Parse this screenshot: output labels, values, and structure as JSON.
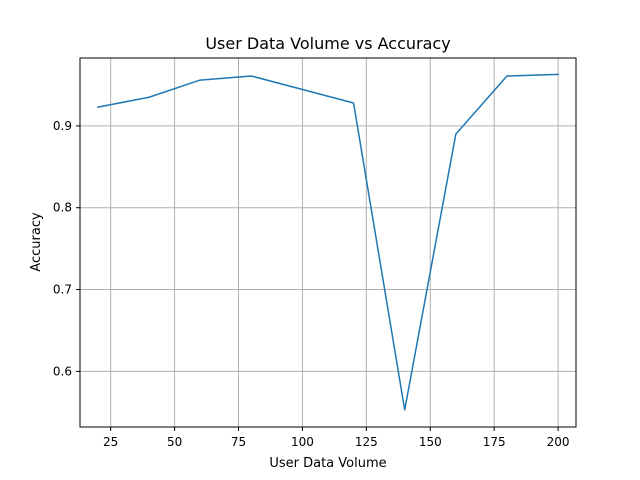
{
  "chart_data": {
    "type": "line",
    "title": "User Data Volume vs Accuracy",
    "xlabel": "User Data Volume",
    "ylabel": "Accuracy",
    "xlim": [
      13,
      207
    ],
    "ylim": [
      0.532,
      0.983
    ],
    "x_ticks": [
      25,
      50,
      75,
      100,
      125,
      150,
      175,
      200
    ],
    "x_tick_labels": [
      "25",
      "50",
      "75",
      "100",
      "125",
      "150",
      "175",
      "200"
    ],
    "y_ticks": [
      0.6,
      0.7,
      0.8,
      0.9
    ],
    "y_tick_labels": [
      "0.6",
      "0.7",
      "0.8",
      "0.9"
    ],
    "grid": true,
    "series": [
      {
        "color": "#1f77b4",
        "x": [
          20,
          40,
          60,
          80,
          120,
          140,
          160,
          180,
          200
        ],
        "y": [
          0.923,
          0.935,
          0.956,
          0.961,
          0.928,
          0.553,
          0.89,
          0.961,
          0.963
        ]
      }
    ]
  }
}
